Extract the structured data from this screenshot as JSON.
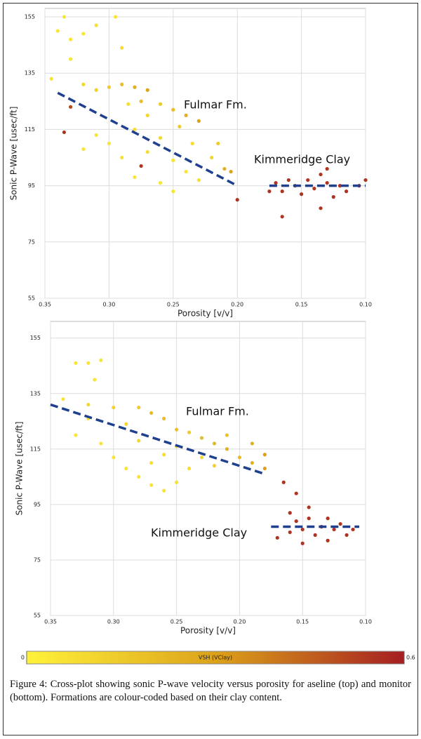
{
  "chart_data": [
    {
      "type": "scatter",
      "xlabel": "Porosity [v/v]",
      "ylabel": "Sonic P-Wave [usec/ft]",
      "annotations": [
        "Fulmar Fm.",
        "Kimmeridge Clay"
      ],
      "xlim": [
        0.35,
        0.1
      ],
      "ylim": [
        55,
        158
      ],
      "grid": true,
      "xticks": [
        0.35,
        {
          "value": 0.3,
          "label": "0.30"
        },
        0.25,
        {
          "value": 0.2,
          "label": "0.20"
        },
        0.15,
        {
          "value": 0.1,
          "label": "0.10"
        }
      ],
      "yticks": [
        55,
        75,
        95,
        115,
        135,
        155
      ],
      "x": [
        0.335,
        0.34,
        0.33,
        0.32,
        0.31,
        0.295,
        0.29,
        0.33,
        0.345,
        0.32,
        0.31,
        0.3,
        0.29,
        0.28,
        0.27,
        0.275,
        0.26,
        0.25,
        0.24,
        0.23,
        0.245,
        0.26,
        0.28,
        0.3,
        0.31,
        0.32,
        0.29,
        0.27,
        0.25,
        0.24,
        0.26,
        0.25,
        0.23,
        0.22,
        0.21,
        0.205,
        0.215,
        0.27,
        0.285,
        0.33,
        0.335,
        0.275,
        0.2,
        0.28,
        0.235,
        0.17,
        0.165,
        0.16,
        0.155,
        0.15,
        0.145,
        0.14,
        0.135,
        0.13,
        0.125,
        0.12,
        0.115,
        0.105,
        0.1,
        0.165,
        0.135,
        0.13,
        0.175
      ],
      "values": [
        155,
        150,
        147,
        149,
        152,
        155,
        144,
        140,
        133,
        131,
        129,
        130,
        131,
        130,
        129,
        125,
        124,
        122,
        120,
        118,
        116,
        112,
        115,
        110,
        113,
        108,
        105,
        107,
        104,
        100,
        96,
        93,
        97,
        105,
        101,
        100,
        110,
        120,
        124,
        123,
        114,
        102,
        90,
        98,
        110,
        96,
        93,
        97,
        95,
        92,
        97,
        94,
        99,
        96,
        91,
        95,
        93,
        95,
        97,
        84,
        87,
        101,
        93
      ],
      "vsh": [
        0.05,
        0.05,
        0.05,
        0.05,
        0.08,
        0.05,
        0.08,
        0.05,
        0.06,
        0.1,
        0.12,
        0.15,
        0.2,
        0.25,
        0.3,
        0.2,
        0.15,
        0.2,
        0.25,
        0.3,
        0.15,
        0.1,
        0.08,
        0.06,
        0.05,
        0.05,
        0.06,
        0.08,
        0.06,
        0.05,
        0.05,
        0.05,
        0.07,
        0.1,
        0.25,
        0.3,
        0.15,
        0.1,
        0.08,
        0.5,
        0.55,
        0.55,
        0.55,
        0.05,
        0.08,
        0.55,
        0.55,
        0.55,
        0.5,
        0.55,
        0.55,
        0.55,
        0.55,
        0.55,
        0.55,
        0.55,
        0.55,
        0.55,
        0.55,
        0.55,
        0.55,
        0.55,
        0.55
      ],
      "trend_lines": [
        {
          "x": [
            0.34,
            0.2
          ],
          "y": [
            128,
            95
          ]
        },
        {
          "x": [
            0.175,
            0.1
          ],
          "y": [
            95,
            95
          ]
        }
      ]
    },
    {
      "type": "scatter",
      "xlabel": "Porosity [v/v]",
      "ylabel": "Sonic P-Wave [usec/ft]",
      "annotations": [
        "Fulmar Fm.",
        "Kimmeridge Clay"
      ],
      "xlim": [
        0.35,
        0.1
      ],
      "ylim": [
        55,
        161
      ],
      "grid": true,
      "xticks": [
        0.35,
        {
          "value": 0.3,
          "label": "0.30"
        },
        0.25,
        {
          "value": 0.2,
          "label": "0.20"
        },
        0.15,
        {
          "value": 0.1,
          "label": "0.10"
        }
      ],
      "yticks": [
        55,
        75,
        95,
        115,
        135,
        155
      ],
      "x": [
        0.33,
        0.32,
        0.31,
        0.315,
        0.34,
        0.32,
        0.3,
        0.28,
        0.27,
        0.26,
        0.25,
        0.24,
        0.23,
        0.22,
        0.21,
        0.2,
        0.19,
        0.18,
        0.18,
        0.19,
        0.21,
        0.33,
        0.31,
        0.3,
        0.29,
        0.28,
        0.27,
        0.26,
        0.25,
        0.24,
        0.23,
        0.22,
        0.26,
        0.28,
        0.29,
        0.32,
        0.25,
        0.27,
        0.165,
        0.155,
        0.16,
        0.155,
        0.15,
        0.145,
        0.14,
        0.135,
        0.13,
        0.125,
        0.12,
        0.115,
        0.15,
        0.16,
        0.17,
        0.145,
        0.13,
        0.11
      ],
      "values": [
        146,
        146,
        147,
        140,
        133,
        131,
        130,
        130,
        128,
        126,
        122,
        121,
        119,
        117,
        115,
        112,
        110,
        108,
        113,
        117,
        120,
        120,
        117,
        112,
        108,
        105,
        102,
        100,
        103,
        108,
        112,
        109,
        113,
        118,
        124,
        126,
        116,
        110,
        103,
        99,
        92,
        89,
        86,
        90,
        84,
        87,
        82,
        86,
        88,
        84,
        81,
        85,
        83,
        94,
        90,
        86
      ],
      "vsh": [
        0.05,
        0.05,
        0.05,
        0.05,
        0.05,
        0.1,
        0.12,
        0.15,
        0.2,
        0.2,
        0.18,
        0.15,
        0.2,
        0.22,
        0.25,
        0.2,
        0.25,
        0.3,
        0.3,
        0.25,
        0.18,
        0.05,
        0.05,
        0.06,
        0.05,
        0.05,
        0.05,
        0.05,
        0.06,
        0.08,
        0.1,
        0.12,
        0.08,
        0.1,
        0.1,
        0.06,
        0.12,
        0.07,
        0.55,
        0.55,
        0.55,
        0.55,
        0.55,
        0.55,
        0.55,
        0.55,
        0.55,
        0.55,
        0.55,
        0.55,
        0.55,
        0.55,
        0.55,
        0.55,
        0.55,
        0.55
      ],
      "trend_lines": [
        {
          "x": [
            0.35,
            0.18
          ],
          "y": [
            131,
            106
          ]
        },
        {
          "x": [
            0.175,
            0.105
          ],
          "y": [
            87,
            87
          ]
        }
      ]
    }
  ],
  "colorbar": {
    "title": "VSH (VClay)",
    "lim": [
      0,
      0.6
    ],
    "ticks": [
      0,
      0.6
    ],
    "colors": [
      "#fff23a",
      "#dca21a",
      "#a51e22"
    ]
  },
  "caption": "Figure 4: Cross-plot showing sonic P-wave velocity versus porosity for aseline (top) and monitor (bottom). Formations are colour-coded based on their clay content."
}
